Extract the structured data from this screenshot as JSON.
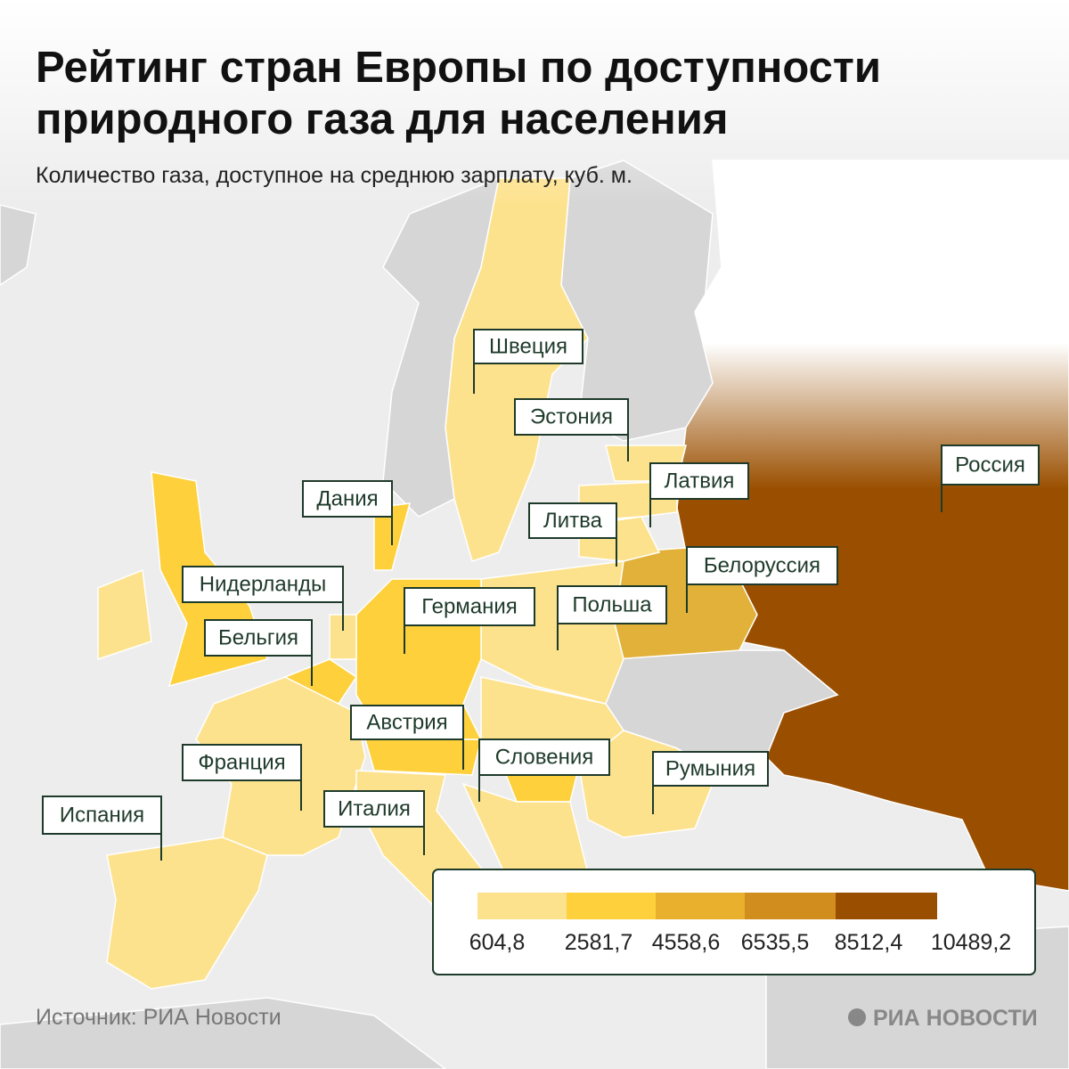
{
  "header": {
    "title_line1": "Рейтинг стран Европы по доступности",
    "title_line2": "природного газа для населения",
    "subtitle": "Количество газа, доступное на среднюю зарплату, куб. м."
  },
  "labels": [
    "Швеция",
    "Эстония",
    "Латвия",
    "Россия",
    "Дания",
    "Литва",
    "Белоруссия",
    "Нидерланды",
    "Германия",
    "Польша",
    "Бельгия",
    "Австрия",
    "Франция",
    "Словения",
    "Румыния",
    "Испания",
    "Италия"
  ],
  "legend": {
    "ticks": [
      "604,8",
      "2581,7",
      "4558,6",
      "6535,5",
      "8512,4",
      "10489,2"
    ]
  },
  "footer": {
    "source": "Источник: РИА Новости",
    "logo": "РИА НОВОСТИ"
  }
}
